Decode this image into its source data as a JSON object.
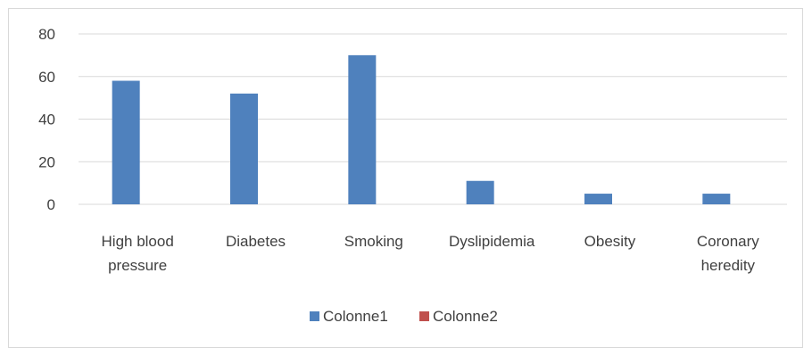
{
  "chart_data": {
    "type": "bar",
    "categories": [
      [
        "High blood",
        "pressure"
      ],
      [
        "Diabetes"
      ],
      [
        "Smoking"
      ],
      [
        "Dyslipidemia"
      ],
      [
        "Obesity"
      ],
      [
        "Coronary",
        "heredity"
      ]
    ],
    "series": [
      {
        "name": "Colonne1",
        "values": [
          58,
          52,
          70,
          11,
          5,
          5
        ],
        "color": "#4f81bd"
      },
      {
        "name": "Colonne2",
        "values": [
          0,
          0,
          0,
          0,
          0,
          0
        ],
        "color": "#c0504d"
      }
    ],
    "title": "",
    "xlabel": "",
    "ylabel": "",
    "ylim": [
      0,
      80
    ],
    "yticks": [
      "0",
      "20",
      "40",
      "60",
      "80"
    ],
    "grid": true,
    "legend_position": "bottom"
  }
}
